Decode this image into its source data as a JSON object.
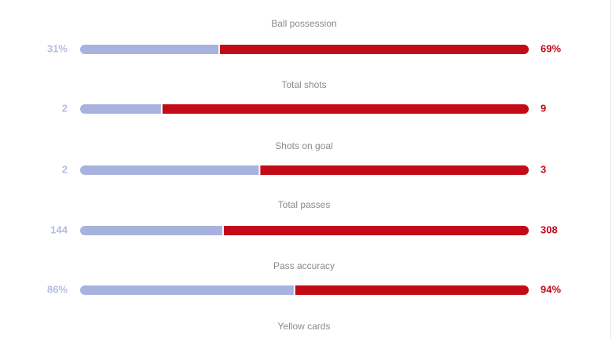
{
  "stats": [
    {
      "label": "Ball possession",
      "home": {
        "value": 31,
        "label": "31%"
      },
      "away": {
        "value": 69,
        "label": "69%"
      }
    },
    {
      "label": "Total shots",
      "home": 2,
      "away": 9
    },
    {
      "label": "Shots on goal",
      "home": 2,
      "away": 3
    },
    {
      "label": "Total passes",
      "home": 144,
      "away": 308
    },
    {
      "label": "Pass accuracy",
      "home": {
        "value": 86,
        "label": "86%"
      },
      "away": {
        "value": 94,
        "label": "94%"
      }
    },
    {
      "label": "Yellow cards"
    }
  ]
}
